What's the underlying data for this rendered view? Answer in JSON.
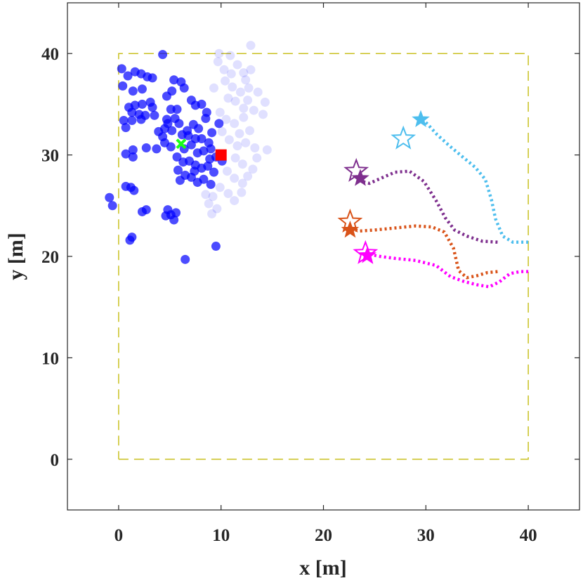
{
  "chart_data": {
    "type": "scatter",
    "title": "",
    "xlabel": "x [m]",
    "ylabel": "y [m]",
    "xlim": [
      -5,
      45
    ],
    "ylim": [
      -5,
      45
    ],
    "xticks": [
      0,
      10,
      20,
      30,
      40
    ],
    "yticks": [
      0,
      10,
      20,
      30,
      40
    ],
    "xtick_labels": [
      "0",
      "10",
      "20",
      "30",
      "40"
    ],
    "ytick_labels": [
      "0",
      "10",
      "20",
      "30",
      "40"
    ],
    "grid": false,
    "legend": "none",
    "boundary": {
      "style": "dashed",
      "color": "#c8c020",
      "x": [
        0,
        40,
        40,
        0,
        0
      ],
      "y": [
        0,
        0,
        40,
        40,
        0
      ]
    },
    "particle_cloud": {
      "color": "#0000ff",
      "solid_points": [
        [
          0.3,
          38.5
        ],
        [
          0.9,
          37.8
        ],
        [
          1.6,
          38.2
        ],
        [
          2.2,
          38.0
        ],
        [
          2.8,
          37.7
        ],
        [
          3.3,
          37.6
        ],
        [
          4.3,
          39.9
        ],
        [
          0.4,
          36.8
        ],
        [
          1.4,
          36.3
        ],
        [
          2.3,
          36.5
        ],
        [
          4.7,
          35.8
        ],
        [
          5.2,
          36.3
        ],
        [
          5.4,
          37.4
        ],
        [
          6.1,
          37.2
        ],
        [
          6.4,
          36.6
        ],
        [
          5.1,
          34.5
        ],
        [
          5.7,
          34.5
        ],
        [
          7.1,
          35.4
        ],
        [
          7.5,
          34.9
        ],
        [
          8.1,
          35.0
        ],
        [
          8.6,
          34.2
        ],
        [
          1.0,
          34.7
        ],
        [
          1.6,
          34.9
        ],
        [
          2.3,
          35.0
        ],
        [
          3.1,
          35.2
        ],
        [
          3.3,
          34.7
        ],
        [
          1.3,
          34.2
        ],
        [
          2.0,
          34.0
        ],
        [
          1.3,
          33.4
        ],
        [
          2.2,
          33.5
        ],
        [
          2.6,
          33.9
        ],
        [
          3.5,
          33.9
        ],
        [
          0.5,
          33.4
        ],
        [
          0.7,
          32.7
        ],
        [
          4.7,
          33.5
        ],
        [
          4.5,
          32.6
        ],
        [
          5.2,
          32.4
        ],
        [
          3.9,
          32.3
        ],
        [
          4.3,
          31.8
        ],
        [
          5.9,
          33.1
        ],
        [
          6.7,
          32.4
        ],
        [
          7.3,
          33.0
        ],
        [
          7.8,
          32.6
        ],
        [
          8.5,
          33.6
        ],
        [
          9.1,
          32.2
        ],
        [
          9.8,
          33.1
        ],
        [
          8.1,
          31.6
        ],
        [
          8.8,
          31.2
        ],
        [
          4.5,
          31.2
        ],
        [
          5.1,
          30.8
        ],
        [
          6.4,
          30.6
        ],
        [
          7.1,
          31.0
        ],
        [
          7.7,
          30.2
        ],
        [
          8.3,
          30.4
        ],
        [
          9.0,
          30.6
        ],
        [
          9.5,
          29.8
        ],
        [
          10.1,
          29.4
        ],
        [
          5.7,
          29.8
        ],
        [
          6.3,
          29.3
        ],
        [
          6.9,
          29.4
        ],
        [
          7.5,
          29.0
        ],
        [
          8.1,
          28.7
        ],
        [
          8.7,
          28.9
        ],
        [
          9.3,
          28.3
        ],
        [
          5.8,
          28.5
        ],
        [
          6.5,
          28.0
        ],
        [
          7.1,
          27.8
        ],
        [
          7.7,
          27.3
        ],
        [
          8.3,
          27.6
        ],
        [
          9.0,
          27.1
        ],
        [
          6.0,
          27.5
        ],
        [
          2.7,
          30.7
        ],
        [
          3.7,
          30.6
        ],
        [
          1.4,
          30.5
        ],
        [
          0.7,
          30.1
        ],
        [
          1.4,
          29.8
        ],
        [
          6.8,
          31.9
        ],
        [
          7.5,
          31.6
        ],
        [
          6.2,
          32.0
        ],
        [
          4.8,
          33.1
        ],
        [
          5.5,
          33.6
        ],
        [
          8.9,
          29.6
        ],
        [
          7.4,
          28.4
        ],
        [
          -0.9,
          25.8
        ],
        [
          -0.6,
          25.0
        ],
        [
          0.7,
          26.9
        ],
        [
          1.2,
          26.8
        ],
        [
          1.5,
          26.5
        ],
        [
          2.3,
          24.4
        ],
        [
          2.7,
          24.6
        ],
        [
          4.8,
          24.6
        ],
        [
          5.1,
          24.1
        ],
        [
          5.6,
          24.3
        ],
        [
          4.6,
          24.0
        ],
        [
          5.4,
          23.6
        ],
        [
          1.1,
          21.6
        ],
        [
          1.3,
          21.9
        ],
        [
          6.5,
          19.7
        ],
        [
          9.5,
          21.0
        ]
      ],
      "faded_points": [
        [
          9.7,
          39.2
        ],
        [
          10.3,
          38.4
        ],
        [
          10.9,
          39.8
        ],
        [
          11.6,
          38.9
        ],
        [
          12.2,
          38.1
        ],
        [
          12.9,
          40.8
        ],
        [
          12.4,
          37.4
        ],
        [
          10.4,
          37.3
        ],
        [
          11.1,
          36.7
        ],
        [
          11.9,
          36.2
        ],
        [
          12.7,
          36.6
        ],
        [
          9.3,
          36.6
        ],
        [
          10.7,
          35.6
        ],
        [
          11.4,
          35.3
        ],
        [
          12.2,
          34.6
        ],
        [
          9.9,
          34.2
        ],
        [
          10.5,
          33.5
        ],
        [
          11.3,
          33.1
        ],
        [
          12.2,
          33.7
        ],
        [
          12.8,
          32.4
        ],
        [
          13.2,
          34.4
        ],
        [
          14.3,
          35.2
        ],
        [
          11.8,
          32.1
        ],
        [
          10.8,
          31.5
        ],
        [
          11.6,
          30.9
        ],
        [
          12.4,
          31.2
        ],
        [
          13.3,
          30.7
        ],
        [
          14.5,
          30.5
        ],
        [
          11.4,
          29.7
        ],
        [
          12.1,
          29.1
        ],
        [
          13.1,
          28.6
        ],
        [
          10.6,
          28.4
        ],
        [
          11.3,
          27.7
        ],
        [
          12.1,
          27.2
        ],
        [
          9.9,
          26.8
        ],
        [
          10.7,
          26.2
        ],
        [
          11.3,
          25.5
        ],
        [
          12.0,
          26.3
        ],
        [
          12.6,
          27.9
        ],
        [
          9.2,
          25.9
        ],
        [
          9.6,
          24.7
        ],
        [
          9.1,
          24.2
        ],
        [
          8.5,
          26.1
        ],
        [
          8.8,
          25.2
        ],
        [
          12.9,
          38.4
        ],
        [
          11.0,
          38.0
        ],
        [
          9.8,
          40.0
        ],
        [
          12.6,
          35.4
        ],
        [
          13.6,
          36.2
        ],
        [
          10.1,
          32.3
        ],
        [
          13.5,
          29.7
        ],
        [
          14.1,
          34.0
        ]
      ]
    },
    "markers": [
      {
        "name": "",
        "type": "cross",
        "color": "#19ff19",
        "x": 6.1,
        "y": 31.1
      },
      {
        "name": "",
        "type": "square",
        "color": "#ff0000",
        "x": 10.0,
        "y": 30.0
      }
    ],
    "trajectories": [
      {
        "name": "",
        "color": "#4dbeee",
        "style": "dotted",
        "x": [
          40.0,
          38.5,
          37.5,
          36.8,
          36.4,
          35.8,
          34.8,
          33.6,
          32.3,
          31.1,
          30.2,
          29.6
        ],
        "y": [
          21.4,
          21.4,
          22.0,
          23.7,
          25.6,
          27.6,
          28.8,
          29.8,
          30.9,
          32.0,
          33.0,
          33.6
        ],
        "start": {
          "x": 29.5,
          "y": 33.5,
          "marker": "filled-star"
        },
        "estimate": {
          "x": 27.8,
          "y": 31.6,
          "marker": "open-star"
        }
      },
      {
        "name": "",
        "color": "#7e2f8e",
        "style": "dotted",
        "x": [
          37.0,
          35.5,
          34.0,
          32.8,
          31.9,
          31.0,
          29.8,
          28.4,
          27.0,
          25.6,
          24.5,
          23.7
        ],
        "y": [
          21.4,
          21.5,
          22.0,
          22.6,
          23.8,
          25.5,
          27.4,
          28.4,
          28.3,
          27.7,
          27.2,
          27.4
        ],
        "start": {
          "x": 23.6,
          "y": 27.7,
          "marker": "filled-star"
        },
        "estimate": {
          "x": 23.2,
          "y": 28.4,
          "marker": "open-star"
        }
      },
      {
        "name": "",
        "color": "#d95319",
        "style": "dotted",
        "x": [
          37.0,
          36.0,
          35.0,
          34.0,
          33.2,
          32.7,
          31.8,
          30.6,
          29.0,
          27.0,
          25.0,
          23.5,
          22.8
        ],
        "y": [
          18.5,
          18.4,
          18.1,
          17.9,
          18.6,
          20.8,
          22.4,
          22.9,
          23.0,
          22.8,
          22.6,
          22.5,
          22.7
        ],
        "start": {
          "x": 22.6,
          "y": 22.6,
          "marker": "filled-star"
        },
        "estimate": {
          "x": 22.6,
          "y": 23.4,
          "marker": "open-star"
        }
      },
      {
        "name": "",
        "color": "#ff00ff",
        "style": "dotted",
        "x": [
          40.0,
          39.2,
          38.2,
          37.2,
          36.2,
          35.0,
          33.8,
          32.4,
          31.0,
          29.0,
          27.0,
          25.5,
          24.5
        ],
        "y": [
          18.5,
          18.5,
          18.3,
          17.5,
          17.0,
          17.2,
          17.5,
          18.0,
          19.1,
          19.6,
          19.8,
          20.0,
          20.2
        ],
        "start": {
          "x": 24.3,
          "y": 20.1,
          "marker": "filled-star"
        },
        "estimate": {
          "x": 24.1,
          "y": 20.3,
          "marker": "open-star"
        }
      }
    ]
  }
}
